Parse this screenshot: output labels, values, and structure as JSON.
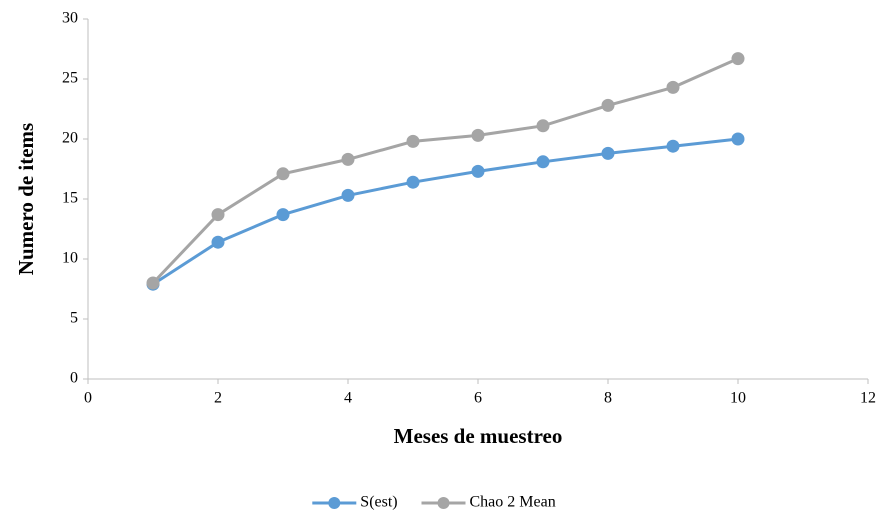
{
  "chart_data": {
    "type": "line",
    "x_label": "Meses de muestreo",
    "y_label": "Numero de items",
    "x": [
      1,
      2,
      3,
      4,
      5,
      6,
      7,
      8,
      9,
      10
    ],
    "series": [
      {
        "name": "S(est)",
        "color": "#5b9bd5",
        "values": [
          7.9,
          11.4,
          13.7,
          15.3,
          16.4,
          17.3,
          18.1,
          18.8,
          19.4,
          20.0
        ]
      },
      {
        "name": "Chao 2 Mean",
        "color": "#a5a5a5",
        "values": [
          8.0,
          13.7,
          17.1,
          18.3,
          19.8,
          20.3,
          21.1,
          22.8,
          24.3,
          26.7
        ]
      }
    ],
    "xlim": [
      0,
      12
    ],
    "xticks": [
      0,
      2,
      4,
      6,
      8,
      10,
      12
    ],
    "ylim": [
      0,
      30
    ],
    "yticks": [
      0,
      5,
      10,
      15,
      20,
      25,
      30
    ],
    "grid": false,
    "legend": "bottom"
  }
}
